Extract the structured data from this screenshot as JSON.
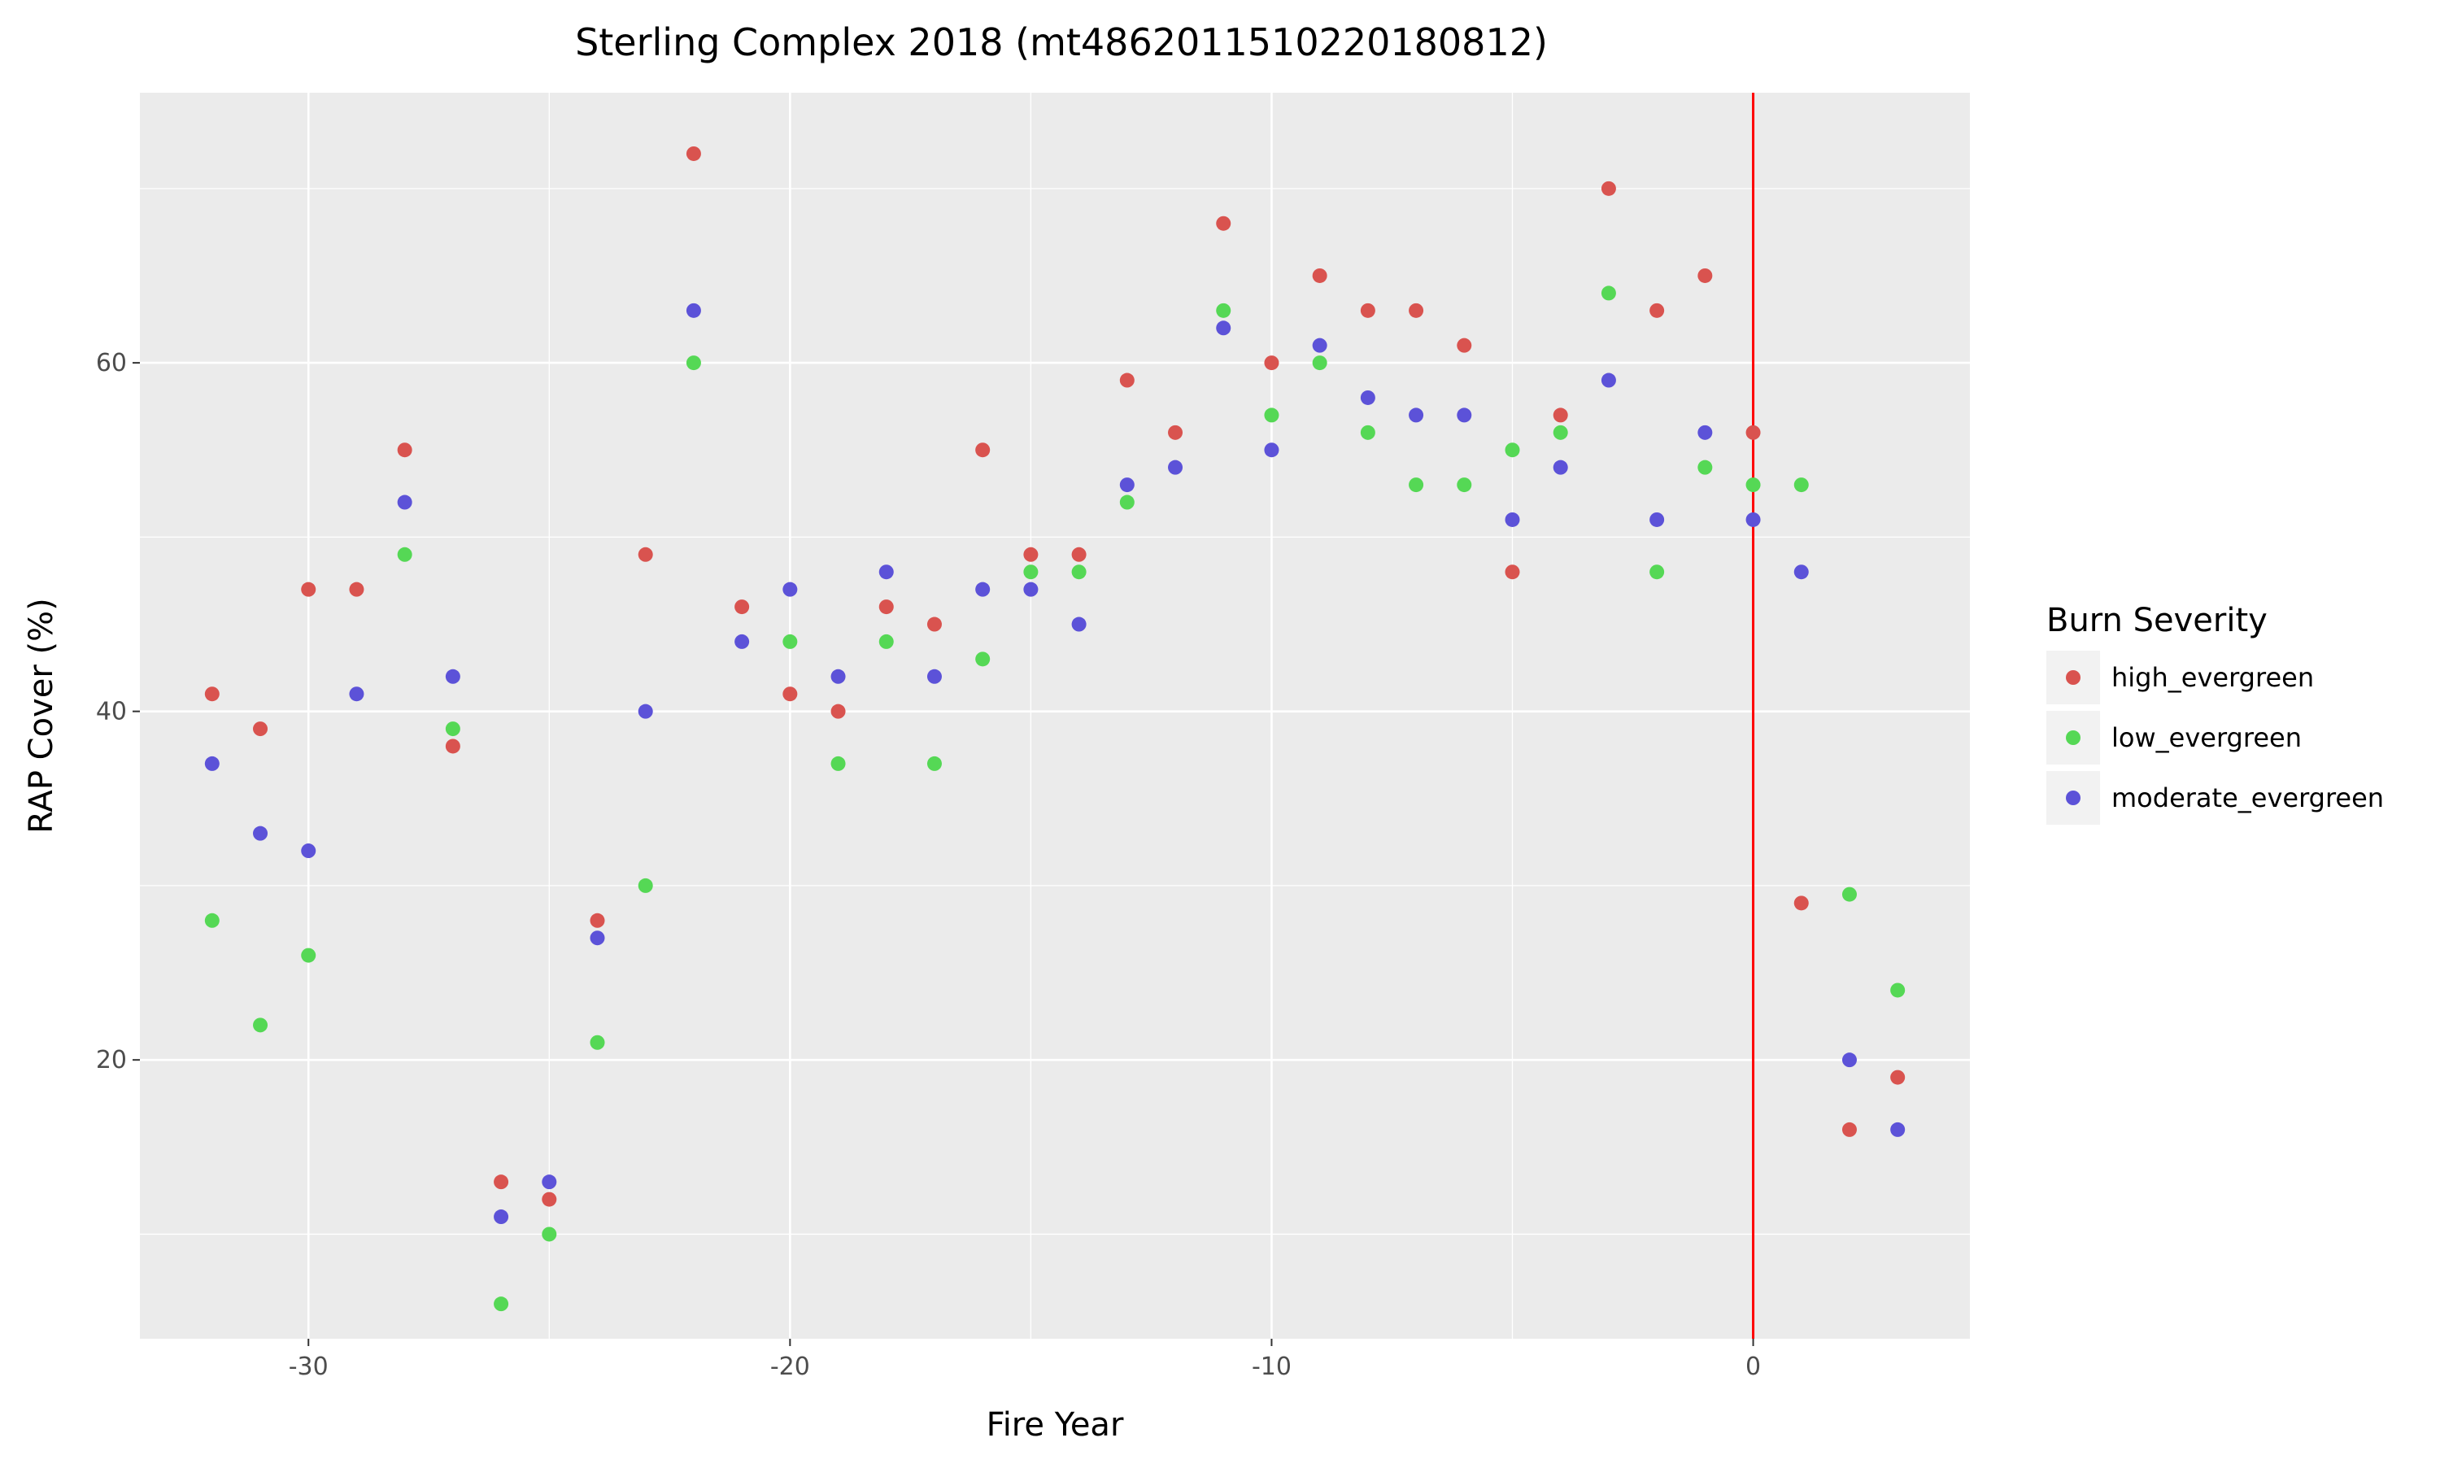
{
  "chart_data": {
    "type": "scatter",
    "title": "Sterling Complex 2018 (mt4862011510220180812)",
    "xlabel": "Fire Year",
    "ylabel": "RAP Cover (%)",
    "xlim": [
      -33.5,
      4.5
    ],
    "ylim": [
      4,
      75.5
    ],
    "x_ticks": [
      -30,
      -20,
      -10,
      0
    ],
    "y_ticks": [
      20,
      40,
      60
    ],
    "x_tick_labels": [
      "-30",
      "-20",
      "-10",
      "0"
    ],
    "y_tick_labels": [
      "20",
      "40",
      "60"
    ],
    "grid": true,
    "vline": {
      "x": 0,
      "color": "#ff0000"
    },
    "legend": {
      "title": "Burn Severity",
      "placement": "right"
    },
    "series": [
      {
        "name": "high_evergreen",
        "color": "#d9534f",
        "points": [
          [
            -32,
            41
          ],
          [
            -31,
            39
          ],
          [
            -30,
            47
          ],
          [
            -29,
            47
          ],
          [
            -28,
            55
          ],
          [
            -27,
            38
          ],
          [
            -26,
            13
          ],
          [
            -25,
            12
          ],
          [
            -24,
            28
          ],
          [
            -23,
            49
          ],
          [
            -22,
            72
          ],
          [
            -21,
            46
          ],
          [
            -20,
            41
          ],
          [
            -19,
            40
          ],
          [
            -18,
            46
          ],
          [
            -17,
            45
          ],
          [
            -16,
            55
          ],
          [
            -15,
            49
          ],
          [
            -14,
            49
          ],
          [
            -13,
            59
          ],
          [
            -12,
            56
          ],
          [
            -11,
            68
          ],
          [
            -10,
            60
          ],
          [
            -9,
            65
          ],
          [
            -8,
            63
          ],
          [
            -7,
            63
          ],
          [
            -6,
            61
          ],
          [
            -5,
            48
          ],
          [
            -4,
            57
          ],
          [
            -3,
            70
          ],
          [
            -2,
            63
          ],
          [
            -1,
            65
          ],
          [
            0,
            56
          ],
          [
            1,
            29
          ],
          [
            2,
            16
          ],
          [
            3,
            19
          ]
        ]
      },
      {
        "name": "low_evergreen",
        "color": "#55d855",
        "points": [
          [
            -32,
            28
          ],
          [
            -31,
            22
          ],
          [
            -30,
            26
          ],
          [
            -28,
            49
          ],
          [
            -27,
            39
          ],
          [
            -26,
            6
          ],
          [
            -25,
            10
          ],
          [
            -24,
            21
          ],
          [
            -23,
            30
          ],
          [
            -22,
            60
          ],
          [
            -20,
            44
          ],
          [
            -19,
            37
          ],
          [
            -18,
            44
          ],
          [
            -17,
            37
          ],
          [
            -16,
            43
          ],
          [
            -15,
            48
          ],
          [
            -14,
            48
          ],
          [
            -13,
            52
          ],
          [
            -11,
            63
          ],
          [
            -10,
            57
          ],
          [
            -9,
            60
          ],
          [
            -8,
            56
          ],
          [
            -7,
            53
          ],
          [
            -6,
            53
          ],
          [
            -5,
            55
          ],
          [
            -4,
            56
          ],
          [
            -3,
            64
          ],
          [
            -2,
            48
          ],
          [
            -1,
            54
          ],
          [
            0,
            53
          ],
          [
            1,
            53
          ],
          [
            2,
            29.5
          ],
          [
            3,
            24
          ]
        ]
      },
      {
        "name": "moderate_evergreen",
        "color": "#5c52d8",
        "points": [
          [
            -32,
            37
          ],
          [
            -31,
            33
          ],
          [
            -30,
            32
          ],
          [
            -29,
            41
          ],
          [
            -28,
            52
          ],
          [
            -27,
            42
          ],
          [
            -26,
            11
          ],
          [
            -25,
            13
          ],
          [
            -24,
            27
          ],
          [
            -23,
            40
          ],
          [
            -22,
            63
          ],
          [
            -21,
            44
          ],
          [
            -20,
            47
          ],
          [
            -19,
            42
          ],
          [
            -18,
            48
          ],
          [
            -17,
            42
          ],
          [
            -16,
            47
          ],
          [
            -15,
            47
          ],
          [
            -14,
            45
          ],
          [
            -13,
            53
          ],
          [
            -12,
            54
          ],
          [
            -11,
            62
          ],
          [
            -10,
            55
          ],
          [
            -9,
            61
          ],
          [
            -8,
            58
          ],
          [
            -7,
            57
          ],
          [
            -6,
            57
          ],
          [
            -5,
            51
          ],
          [
            -4,
            54
          ],
          [
            -3,
            59
          ],
          [
            -2,
            51
          ],
          [
            -1,
            56
          ],
          [
            0,
            51
          ],
          [
            1,
            48
          ],
          [
            2,
            20
          ],
          [
            3,
            16
          ]
        ]
      }
    ]
  }
}
